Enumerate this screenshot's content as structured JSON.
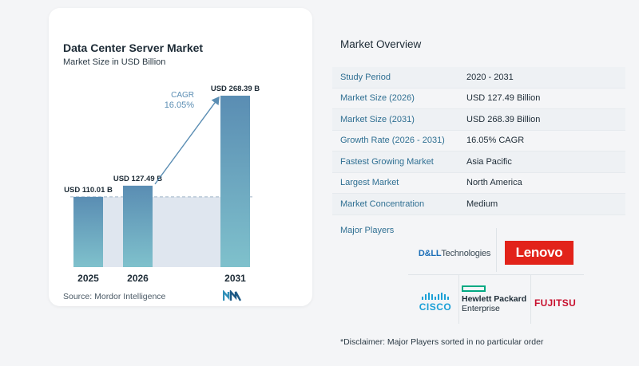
{
  "chart_data": {
    "type": "bar",
    "title": "Data Center Server Market",
    "subtitle": "Market Size in USD Billion",
    "categories": [
      "2025",
      "2026",
      "2031"
    ],
    "values": [
      110.01,
      127.49,
      268.39
    ],
    "data_labels": [
      "USD 110.01 B",
      "USD 127.49 B",
      "USD 268.39 B"
    ],
    "annotation": {
      "label": "CAGR",
      "value": "16.05%"
    },
    "ylim": [
      0,
      290
    ],
    "grid": false,
    "colors": {
      "bar_top": "#5a8db3",
      "bar_bottom": "#7fc1cc",
      "shade": "#dfe6ef",
      "arrow": "#5a8db3"
    }
  },
  "source": "Source:  Mordor Intelligence",
  "overview": {
    "title": "Market Overview",
    "rows": [
      {
        "label": "Study Period",
        "value": "2020 - 2031"
      },
      {
        "label": "Market Size (2026)",
        "value": "USD 127.49 Billion"
      },
      {
        "label": "Market Size (2031)",
        "value": "USD 268.39 Billion"
      },
      {
        "label": "Growth Rate (2026 - 2031)",
        "value": "16.05% CAGR"
      },
      {
        "label": "Fastest Growing Market",
        "value": "Asia Pacific"
      },
      {
        "label": "Largest Market",
        "value": "North America"
      },
      {
        "label": "Market Concentration",
        "value": "Medium"
      }
    ]
  },
  "players": {
    "title": "Major Players",
    "dell": {
      "brand": "D&LL",
      "suffix": "Technologies"
    },
    "lenovo": "Lenovo",
    "cisco": "CISCO",
    "hpe": {
      "line1": "Hewlett Packard",
      "line2": "Enterprise"
    },
    "fujitsu": "FUJITSU"
  },
  "disclaimer": "*Disclaimer: Major Players sorted in no particular order"
}
